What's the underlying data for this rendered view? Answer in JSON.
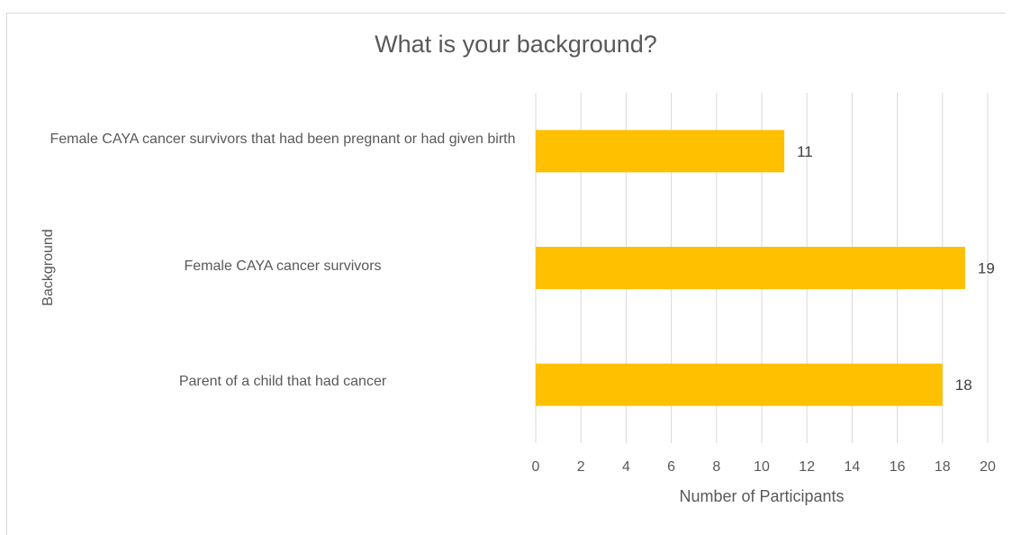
{
  "chart_data": {
    "type": "bar",
    "orientation": "horizontal",
    "title": "What is your background?",
    "xlabel": "Number of Participants",
    "ylabel": "Background",
    "categories": [
      "Female CAYA cancer survivors that had been pregnant or had given birth",
      "Female CAYA cancer survivors",
      "Parent of a child that had cancer"
    ],
    "values": [
      11,
      19,
      18
    ],
    "data_labels": [
      "11",
      "19",
      "18"
    ],
    "xlim": [
      0,
      20
    ],
    "x_ticks": [
      "0",
      "2",
      "4",
      "6",
      "8",
      "10",
      "12",
      "14",
      "16",
      "18",
      "20"
    ],
    "grid": "vertical",
    "bar_color": "#FFC000",
    "grid_color": "#d9d9d9",
    "text_color": "#595959"
  }
}
